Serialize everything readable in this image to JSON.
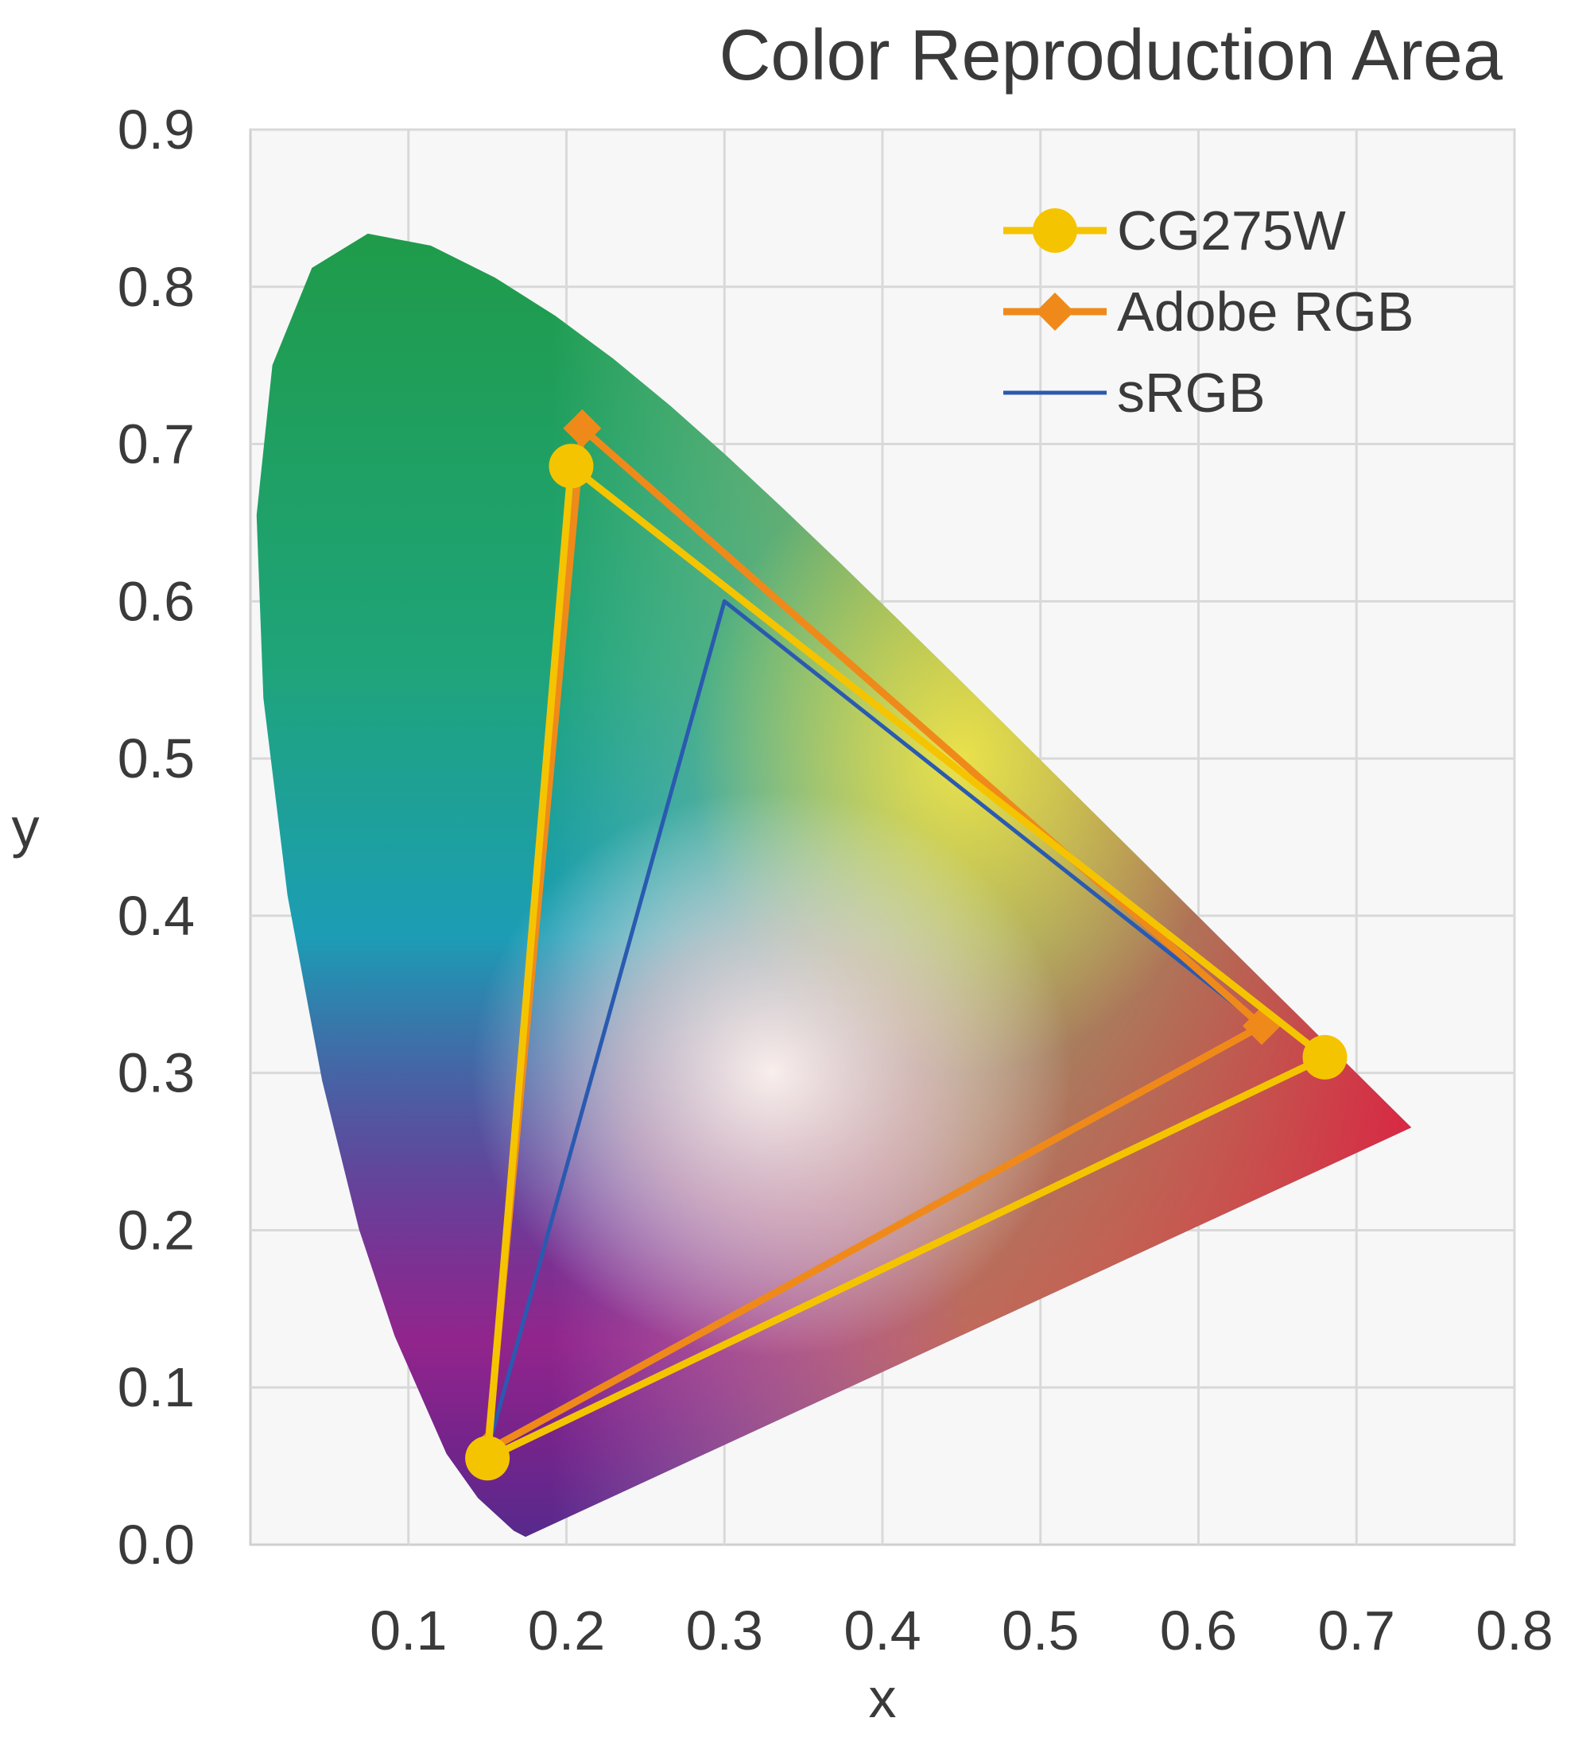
{
  "chart_data": {
    "type": "scatter",
    "title": "Color Reproduction Area",
    "xlabel": "x",
    "ylabel": "y",
    "xlim": [
      0,
      0.8
    ],
    "ylim": [
      0,
      0.9
    ],
    "x_ticks": [
      "0.1",
      "0.2",
      "0.3",
      "0.4",
      "0.5",
      "0.6",
      "0.7",
      "0.8"
    ],
    "y_ticks": [
      "0.0",
      "0.1",
      "0.2",
      "0.3",
      "0.4",
      "0.5",
      "0.6",
      "0.7",
      "0.8",
      "0.9"
    ],
    "grid": true,
    "legend_position": "top-right",
    "series": [
      {
        "name": "CG275W",
        "color": "#f5c400",
        "marker": "circle",
        "points": [
          [
            0.68,
            0.31
          ],
          [
            0.203,
            0.686
          ],
          [
            0.15,
            0.055
          ]
        ]
      },
      {
        "name": "Adobe RGB",
        "color": "#ef8a1a",
        "marker": "diamond",
        "points": [
          [
            0.64,
            0.33
          ],
          [
            0.21,
            0.71
          ],
          [
            0.15,
            0.06
          ]
        ]
      },
      {
        "name": "sRGB",
        "color": "#2a5ab0",
        "marker": "none",
        "points": [
          [
            0.64,
            0.33
          ],
          [
            0.3,
            0.6
          ],
          [
            0.15,
            0.06
          ]
        ]
      }
    ],
    "spectral_locus": [
      [
        0.1741,
        0.005
      ],
      [
        0.1666,
        0.0089
      ],
      [
        0.144,
        0.0297
      ],
      [
        0.1241,
        0.0578
      ],
      [
        0.0913,
        0.1327
      ],
      [
        0.0687,
        0.2007
      ],
      [
        0.0454,
        0.295
      ],
      [
        0.0235,
        0.4127
      ],
      [
        0.0082,
        0.5384
      ],
      [
        0.0039,
        0.6548
      ],
      [
        0.0139,
        0.7502
      ],
      [
        0.0389,
        0.812
      ],
      [
        0.0743,
        0.8338
      ],
      [
        0.1142,
        0.8262
      ],
      [
        0.1547,
        0.8059
      ],
      [
        0.1929,
        0.7816
      ],
      [
        0.2296,
        0.7543
      ],
      [
        0.2658,
        0.7243
      ],
      [
        0.3016,
        0.6923
      ],
      [
        0.3373,
        0.6589
      ],
      [
        0.3731,
        0.6245
      ],
      [
        0.4087,
        0.5896
      ],
      [
        0.4441,
        0.5547
      ],
      [
        0.4788,
        0.5202
      ],
      [
        0.5125,
        0.4866
      ],
      [
        0.5448,
        0.4544
      ],
      [
        0.5752,
        0.4242
      ],
      [
        0.6029,
        0.3965
      ],
      [
        0.627,
        0.3725
      ],
      [
        0.6482,
        0.3514
      ],
      [
        0.6658,
        0.334
      ],
      [
        0.6801,
        0.3197
      ],
      [
        0.6915,
        0.3083
      ],
      [
        0.7006,
        0.2993
      ],
      [
        0.7079,
        0.292
      ],
      [
        0.714,
        0.2859
      ],
      [
        0.7347,
        0.2653
      ]
    ]
  }
}
